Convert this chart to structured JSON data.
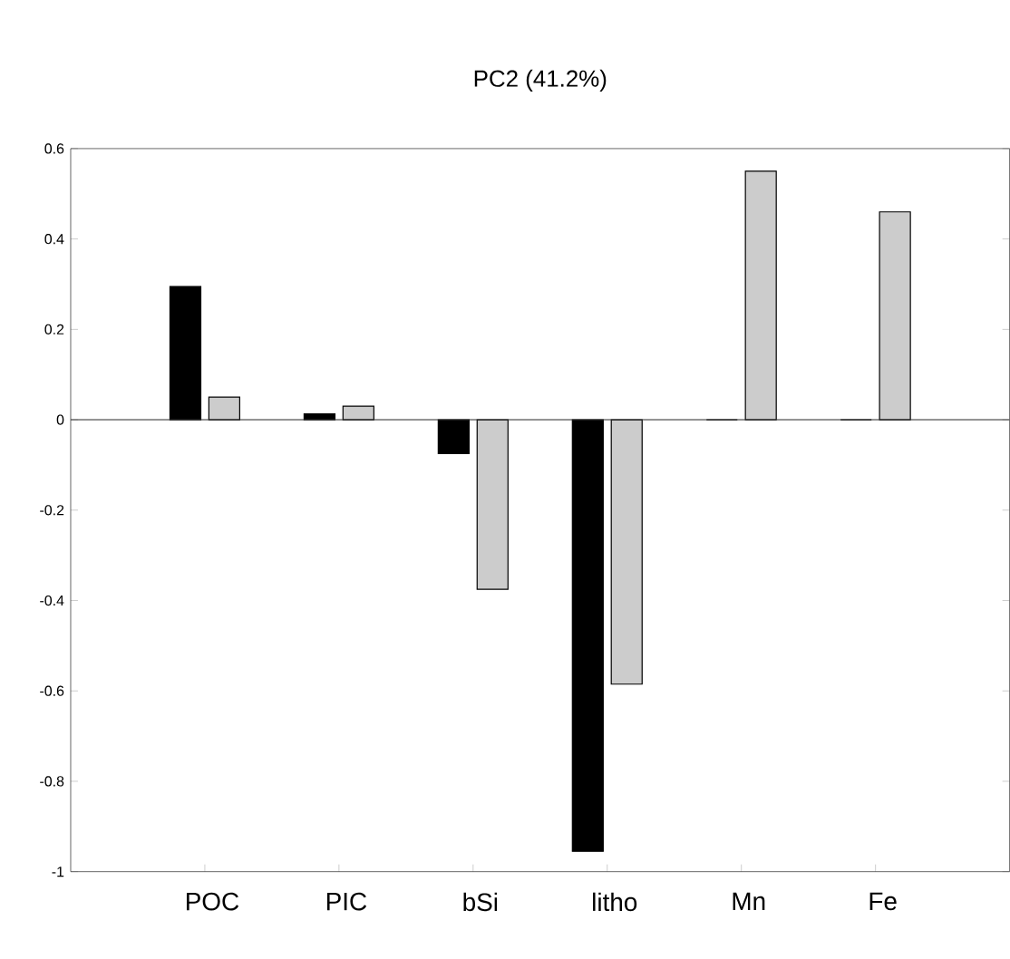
{
  "chart_data": {
    "type": "bar",
    "title": "PC2 (41.2%)",
    "categories": [
      "POC",
      "PIC",
      "bSi",
      "litho",
      "Mn",
      "Fe"
    ],
    "series": [
      {
        "color": "#000000",
        "values": [
          0.295,
          0.013,
          -0.075,
          -0.955,
          0,
          0
        ]
      },
      {
        "color": "#cccccc",
        "values": [
          0.05,
          0.03,
          -0.375,
          -0.585,
          0.55,
          0.46
        ]
      }
    ],
    "ylim": [
      -1,
      0.6
    ],
    "yticks": [
      -1,
      -0.8,
      -0.6,
      -0.4,
      -0.2,
      0,
      0.2,
      0.4,
      0.6
    ]
  }
}
